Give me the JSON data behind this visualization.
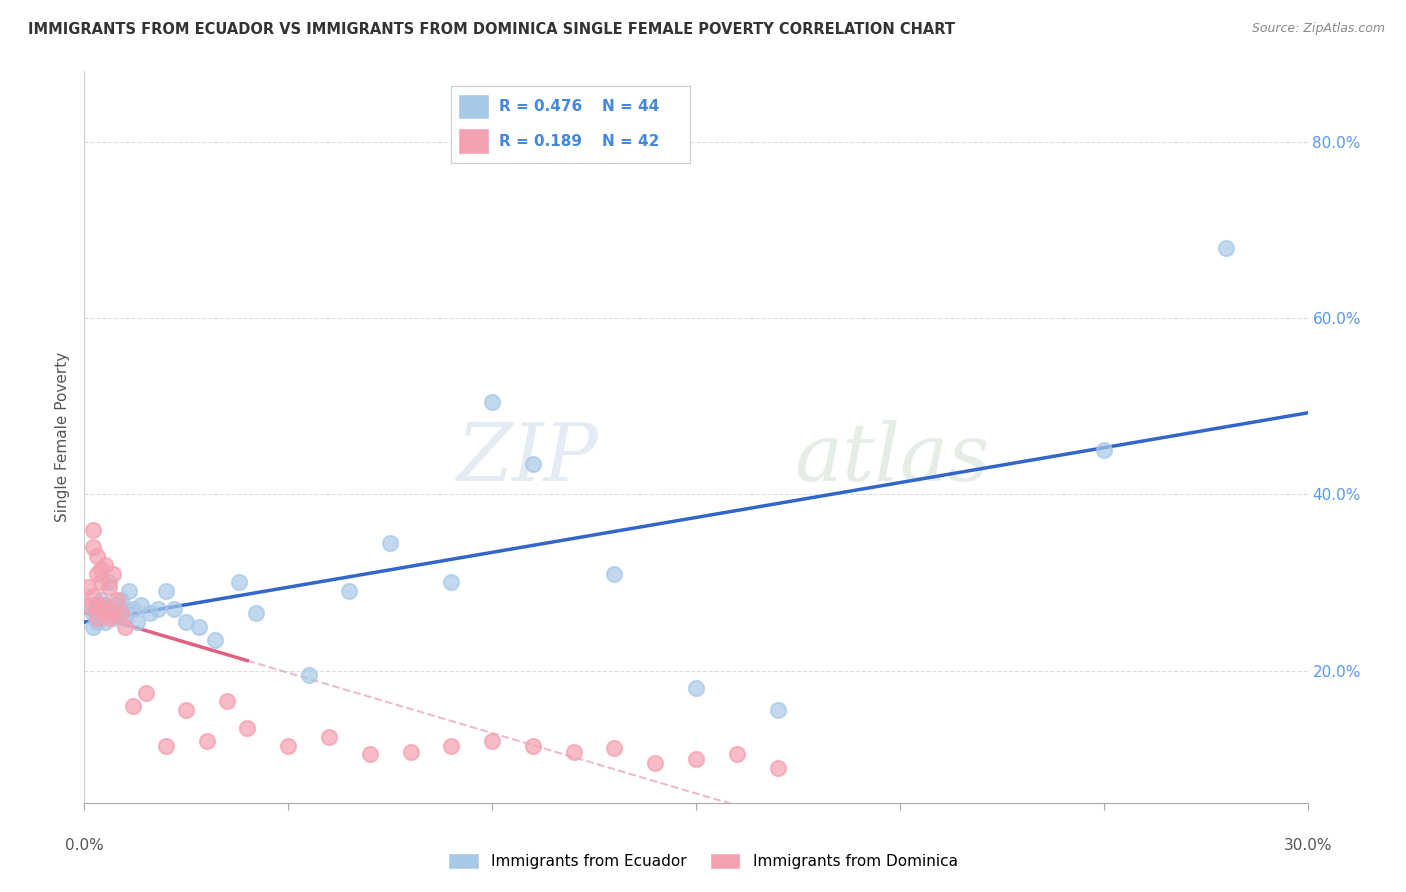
{
  "title": "IMMIGRANTS FROM ECUADOR VS IMMIGRANTS FROM DOMINICA SINGLE FEMALE POVERTY CORRELATION CHART",
  "source": "Source: ZipAtlas.com",
  "ylabel": "Single Female Poverty",
  "yticks": [
    0.2,
    0.4,
    0.6,
    0.8
  ],
  "ytick_labels": [
    "20.0%",
    "40.0%",
    "60.0%",
    "80.0%"
  ],
  "xlim": [
    0.0,
    0.3
  ],
  "ylim": [
    0.05,
    0.88
  ],
  "ecuador_R": 0.476,
  "ecuador_N": 44,
  "dominica_R": 0.189,
  "dominica_N": 42,
  "ecuador_color": "#a8c8e8",
  "dominica_color": "#f4a0b0",
  "ecuador_line_color": "#3366cc",
  "dominica_line_color": "#e06080",
  "ecuador_scatter_x": [
    0.001,
    0.002,
    0.002,
    0.003,
    0.003,
    0.003,
    0.004,
    0.004,
    0.005,
    0.005,
    0.005,
    0.006,
    0.006,
    0.007,
    0.007,
    0.008,
    0.008,
    0.009,
    0.01,
    0.01,
    0.011,
    0.012,
    0.013,
    0.014,
    0.016,
    0.018,
    0.02,
    0.022,
    0.025,
    0.028,
    0.032,
    0.038,
    0.042,
    0.055,
    0.065,
    0.075,
    0.09,
    0.1,
    0.11,
    0.13,
    0.15,
    0.17,
    0.25,
    0.28
  ],
  "ecuador_scatter_y": [
    0.275,
    0.265,
    0.25,
    0.27,
    0.255,
    0.26,
    0.275,
    0.28,
    0.265,
    0.27,
    0.255,
    0.27,
    0.3,
    0.27,
    0.26,
    0.275,
    0.265,
    0.28,
    0.26,
    0.27,
    0.29,
    0.27,
    0.255,
    0.275,
    0.265,
    0.27,
    0.29,
    0.27,
    0.255,
    0.25,
    0.235,
    0.3,
    0.265,
    0.195,
    0.29,
    0.345,
    0.3,
    0.505,
    0.435,
    0.31,
    0.18,
    0.155,
    0.45,
    0.68
  ],
  "dominica_scatter_x": [
    0.001,
    0.001,
    0.002,
    0.002,
    0.002,
    0.003,
    0.003,
    0.003,
    0.003,
    0.004,
    0.004,
    0.004,
    0.005,
    0.005,
    0.005,
    0.006,
    0.006,
    0.007,
    0.007,
    0.008,
    0.009,
    0.01,
    0.012,
    0.015,
    0.02,
    0.025,
    0.03,
    0.035,
    0.04,
    0.05,
    0.06,
    0.07,
    0.08,
    0.09,
    0.1,
    0.11,
    0.12,
    0.13,
    0.14,
    0.15,
    0.16,
    0.17
  ],
  "dominica_scatter_y": [
    0.295,
    0.275,
    0.36,
    0.34,
    0.285,
    0.33,
    0.31,
    0.275,
    0.26,
    0.315,
    0.3,
    0.27,
    0.32,
    0.275,
    0.265,
    0.295,
    0.26,
    0.31,
    0.265,
    0.28,
    0.265,
    0.25,
    0.16,
    0.175,
    0.115,
    0.155,
    0.12,
    0.165,
    0.135,
    0.115,
    0.125,
    0.105,
    0.108,
    0.115,
    0.12,
    0.115,
    0.108,
    0.112,
    0.095,
    0.1,
    0.105,
    0.09
  ],
  "watermark_zip": "ZIP",
  "watermark_atlas": "atlas"
}
